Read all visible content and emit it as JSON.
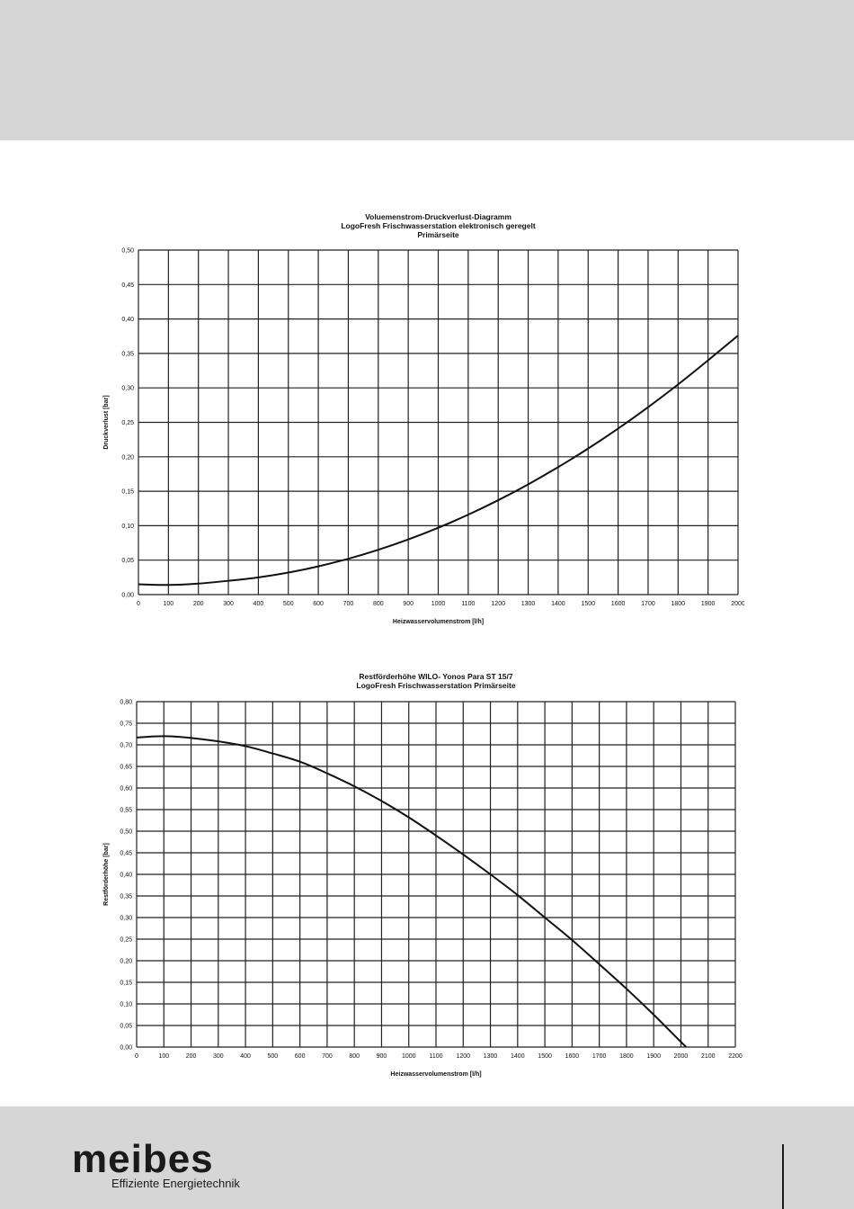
{
  "footer": {
    "logo": "meibes",
    "tagline": "Effiziente Energietechnik"
  },
  "chart_data": [
    {
      "type": "line",
      "title": "Voluemenstrom-Druckverlust-Diagramm",
      "subtitle": [
        "LogoFresh Frischwasserstation elektronisch geregelt",
        "Primärseite"
      ],
      "xlabel": "Heizwasservolumenstrom [l/h]",
      "ylabel": "Druckverlust [bar]",
      "xlim": [
        0,
        2000
      ],
      "ylim": [
        0,
        0.5
      ],
      "x_ticks": [
        "0",
        "100",
        "200",
        "300",
        "400",
        "500",
        "600",
        "700",
        "800",
        "900",
        "1000",
        "1100",
        "1200",
        "1300",
        "1400",
        "1500",
        "1600",
        "1700",
        "1800",
        "1900",
        "2000"
      ],
      "y_ticks": [
        "0,00",
        "0,05",
        "0,10",
        "0,15",
        "0,20",
        "0,25",
        "0,30",
        "0,35",
        "0,40",
        "0,45",
        "0,50"
      ],
      "grid": true,
      "series": [
        {
          "x": [
            0,
            100,
            200,
            300,
            400,
            500,
            600,
            700,
            800,
            900,
            1000,
            1100,
            1200,
            1300,
            1400,
            1500,
            1600,
            1700,
            1800,
            1900,
            2000
          ],
          "y": [
            0.015,
            0.014,
            0.016,
            0.02,
            0.025,
            0.032,
            0.041,
            0.052,
            0.065,
            0.08,
            0.097,
            0.116,
            0.137,
            0.16,
            0.185,
            0.212,
            0.241,
            0.272,
            0.305,
            0.34,
            0.376
          ]
        }
      ]
    },
    {
      "type": "line",
      "title": "Restförderhöhe  WILO- Yonos Para ST 15/7",
      "subtitle": [
        "LogoFresh Frischwasserstation Primärseite"
      ],
      "xlabel": "Heizwasservolumenstrom [l/h]",
      "ylabel": "Restförderhöhe [bar]",
      "xlim": [
        0,
        2200
      ],
      "ylim": [
        0,
        0.8
      ],
      "x_ticks": [
        "0",
        "100",
        "200",
        "300",
        "400",
        "500",
        "600",
        "700",
        "800",
        "900",
        "1000",
        "1100",
        "1200",
        "1300",
        "1400",
        "1500",
        "1600",
        "1700",
        "1800",
        "1900",
        "2000",
        "2100",
        "2200"
      ],
      "y_ticks": [
        "0,00",
        "0,05",
        "0,10",
        "0,15",
        "0,20",
        "0,25",
        "0,30",
        "0,35",
        "0,40",
        "0,45",
        "0,50",
        "0,55",
        "0,60",
        "0,65",
        "0,70",
        "0,75",
        "0,80"
      ],
      "grid": true,
      "series": [
        {
          "x": [
            0,
            100,
            200,
            300,
            400,
            500,
            600,
            700,
            800,
            900,
            1000,
            1100,
            1200,
            1300,
            1400,
            1500,
            1600,
            1700,
            1800,
            1900,
            2000,
            2020
          ],
          "y": [
            0.717,
            0.72,
            0.716,
            0.708,
            0.697,
            0.68,
            0.661,
            0.634,
            0.604,
            0.57,
            0.532,
            0.49,
            0.446,
            0.4,
            0.352,
            0.3,
            0.248,
            0.192,
            0.135,
            0.075,
            0.012,
            0.0
          ]
        }
      ]
    }
  ]
}
